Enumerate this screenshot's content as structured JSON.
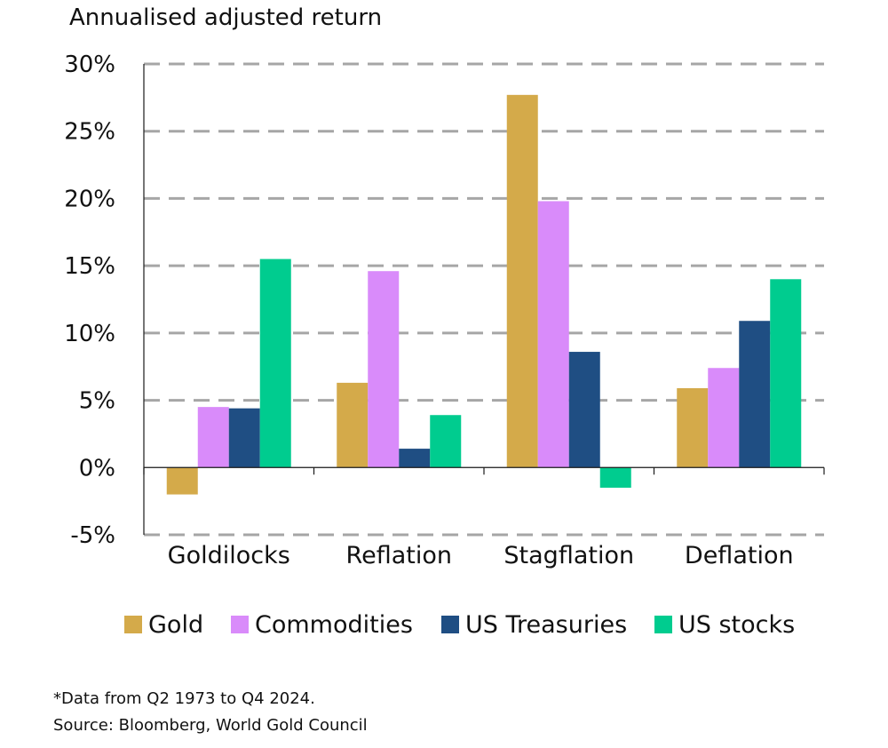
{
  "chart_data": {
    "type": "bar",
    "ylabel": "Annualised adjusted return",
    "categories": [
      "Goldilocks",
      "Reflation",
      "Stagflation",
      "Deflation"
    ],
    "ylim": [
      -5,
      30
    ],
    "yticks": [
      30,
      25,
      20,
      15,
      10,
      5,
      0,
      -5
    ],
    "ytick_labels": [
      "30%",
      "25%",
      "20%",
      "15%",
      "10%",
      "5%",
      "0%",
      "-5%"
    ],
    "grid": true,
    "legend_position": "bottom",
    "series": [
      {
        "name": "Gold",
        "color": "#D4AA4A",
        "values": [
          -2.0,
          6.3,
          27.7,
          5.9
        ]
      },
      {
        "name": "Commodities",
        "color": "#D98BFA",
        "values": [
          4.5,
          14.6,
          19.8,
          7.4
        ]
      },
      {
        "name": "US Treasuries",
        "color": "#1F4E83",
        "values": [
          4.4,
          1.4,
          8.6,
          10.9
        ]
      },
      {
        "name": "US stocks",
        "color": "#00CC8F",
        "values": [
          15.5,
          3.9,
          -1.5,
          14.0
        ]
      }
    ]
  },
  "footnotes": {
    "note": "*Data from Q2 1973 to Q4 2024.",
    "source": "Source: Bloomberg, World Gold Council"
  }
}
